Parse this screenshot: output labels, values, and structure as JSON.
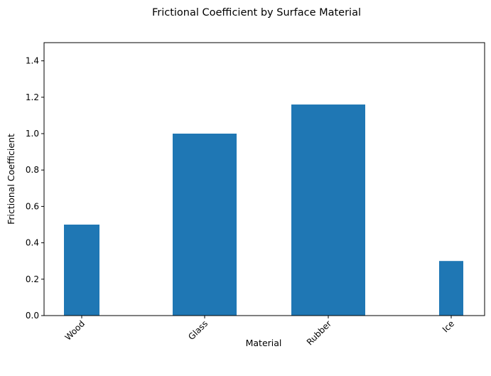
{
  "chart_data": {
    "type": "bar",
    "title": "Frictional Coefficient by Surface Material",
    "xlabel": "Material",
    "ylabel": "Frictional Coefficient",
    "categories": [
      "Wood",
      "Glass",
      "Rubber",
      "Ice"
    ],
    "values": [
      0.5,
      1.0,
      1.16,
      0.3
    ],
    "ylim": [
      0,
      1.5
    ],
    "yticks": [
      "0.0",
      "0.2",
      "0.4",
      "0.6",
      "0.8",
      "1.0",
      "1.2",
      "1.4"
    ],
    "grid": false,
    "bar_color": "#1f77b4"
  }
}
